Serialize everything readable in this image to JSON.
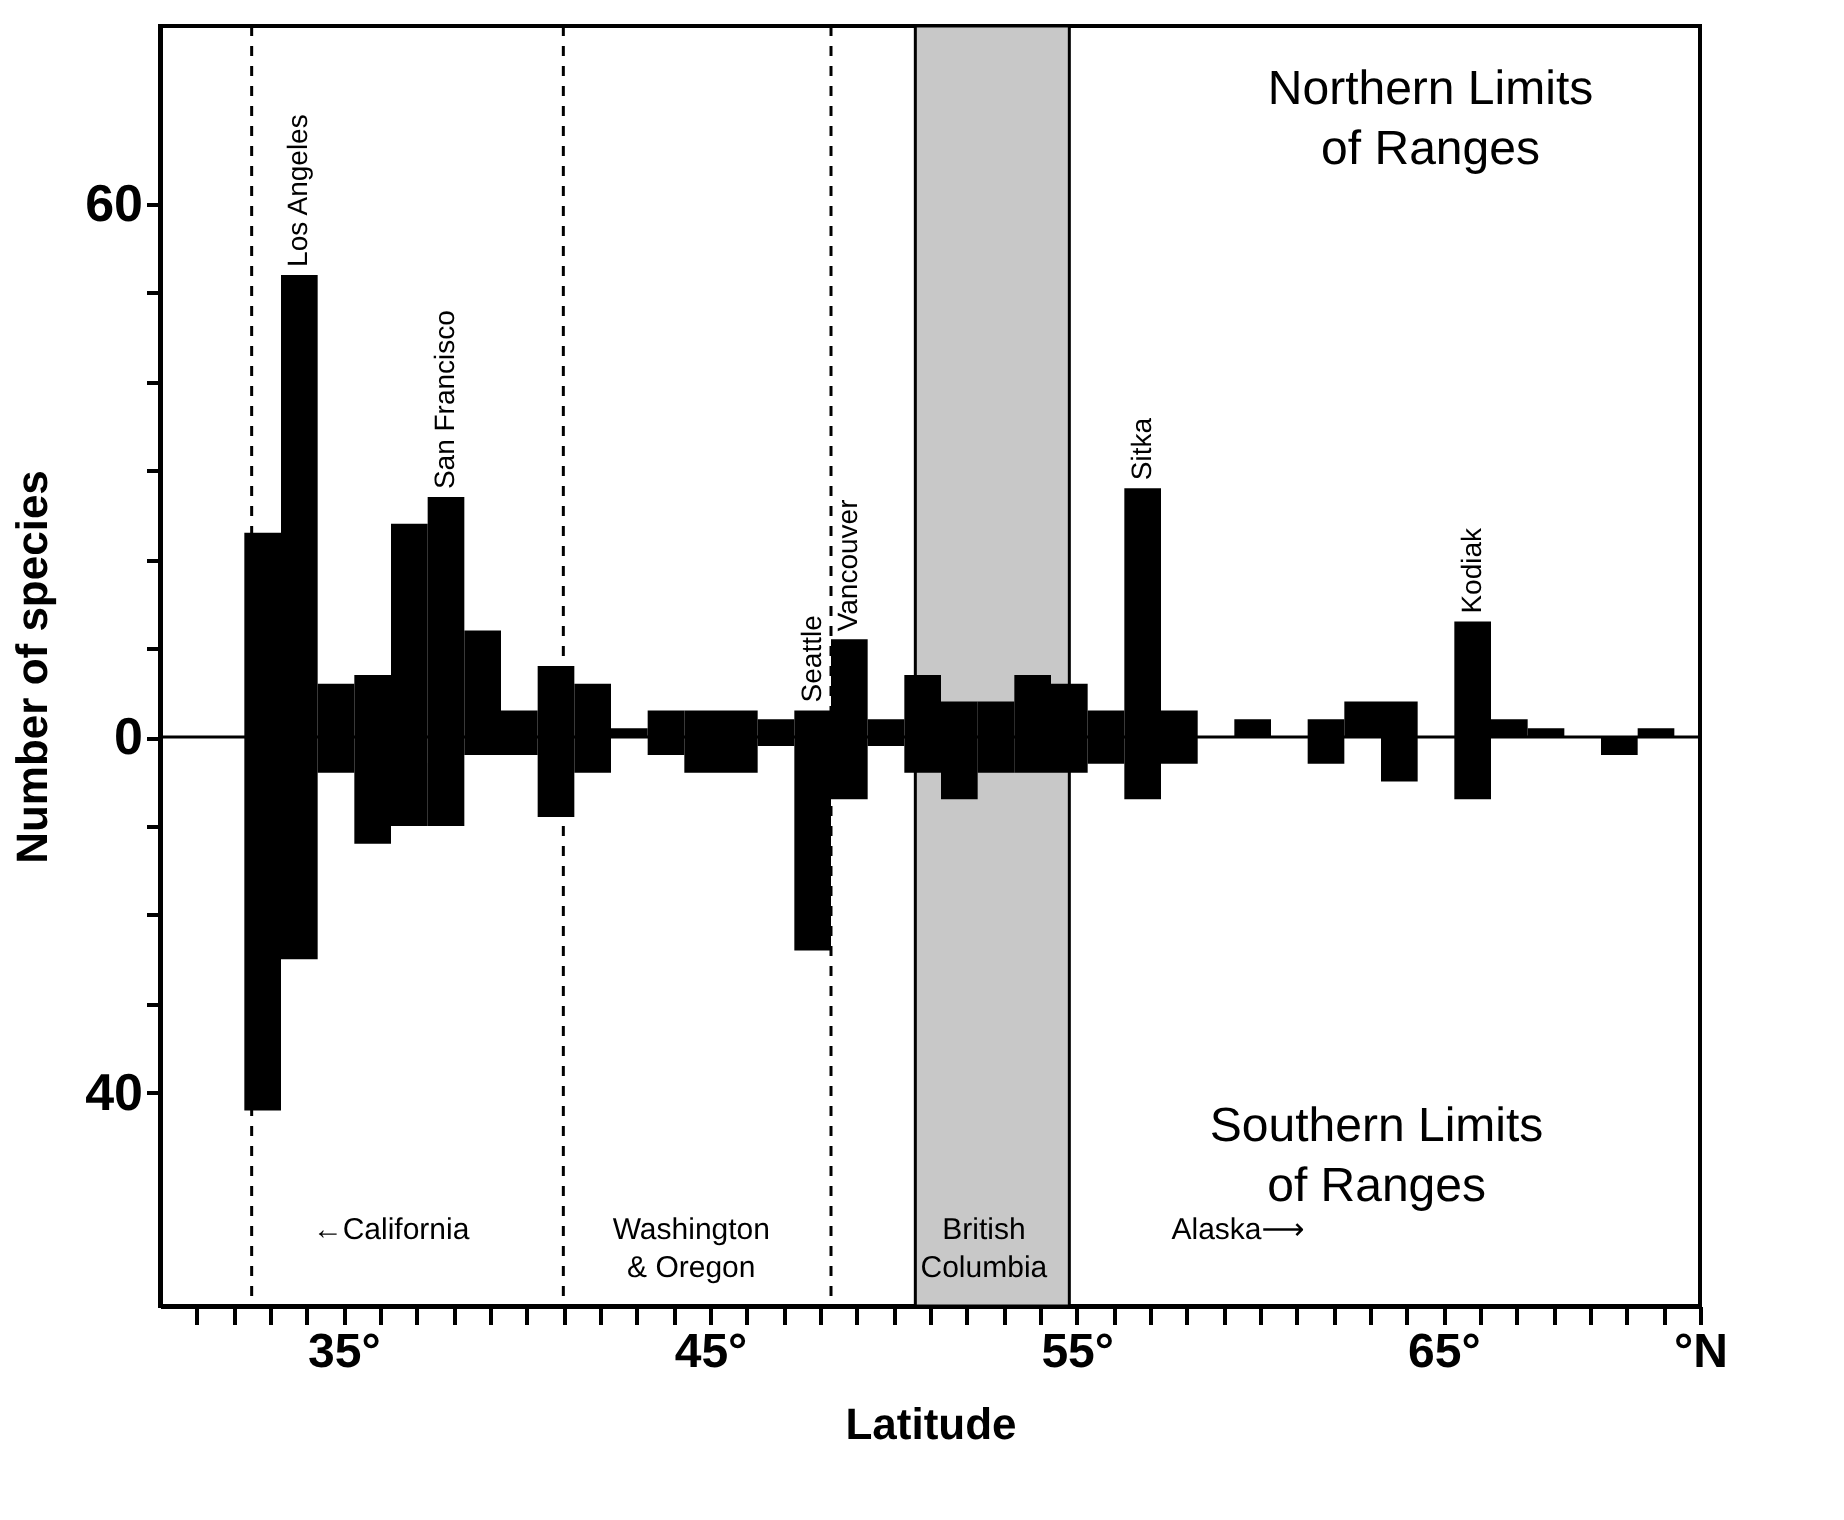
{
  "chart_data": {
    "type": "bar",
    "xlabel": "Latitude",
    "ylabel": "Number of species",
    "stacked": true,
    "x": [
      32.8,
      33.8,
      34.8,
      35.8,
      36.8,
      37.8,
      38.8,
      39.8,
      40.8,
      41.8,
      42.8,
      43.8,
      44.8,
      45.8,
      46.8,
      47.8,
      48.8,
      49.8,
      50.8,
      51.8,
      52.8,
      53.8,
      54.8,
      55.8,
      56.8,
      57.8,
      59.8,
      61.8,
      62.8,
      63.8,
      65.8,
      66.8,
      67.8,
      69.8,
      70.8
    ],
    "series": [
      {
        "color": "#000000",
        "values": [
          23,
          52,
          6,
          7,
          24,
          27,
          12,
          3,
          8,
          6,
          1,
          3,
          3,
          3,
          2,
          3,
          11,
          2,
          7,
          4,
          4,
          7,
          6,
          3,
          28,
          3,
          2,
          2,
          4,
          4,
          13,
          2,
          1,
          null,
          1
        ]
      },
      {
        "color": "#000000",
        "values": [
          -42,
          -25,
          -4,
          -12,
          -10,
          -10,
          -2,
          -2,
          -9,
          -4,
          null,
          -2,
          -4,
          -4,
          -1,
          -24,
          -7,
          -1,
          -4,
          -7,
          -4,
          -4,
          -4,
          -3,
          -7,
          -3,
          null,
          -3,
          null,
          -5,
          -7,
          null,
          null,
          -2,
          null
        ]
      }
    ],
    "xlim": [
      30,
      72
    ],
    "xticks": [
      {
        "value": 31,
        "label": null
      },
      {
        "value": 32,
        "label": null
      },
      {
        "value": 33,
        "label": null
      },
      {
        "value": 34,
        "label": null
      },
      {
        "value": 35,
        "label": "35°"
      },
      {
        "value": 36,
        "label": null
      },
      {
        "value": 37,
        "label": null
      },
      {
        "value": 38,
        "label": null
      },
      {
        "value": 39,
        "label": null
      },
      {
        "value": 40,
        "label": null
      },
      {
        "value": 41,
        "label": null
      },
      {
        "value": 42,
        "label": null
      },
      {
        "value": 43,
        "label": null
      },
      {
        "value": 44,
        "label": null
      },
      {
        "value": 45,
        "label": "45°"
      },
      {
        "value": 46,
        "label": null
      },
      {
        "value": 47,
        "label": null
      },
      {
        "value": 48,
        "label": null
      },
      {
        "value": 49,
        "label": null
      },
      {
        "value": 50,
        "label": null
      },
      {
        "value": 51,
        "label": null
      },
      {
        "value": 52,
        "label": null
      },
      {
        "value": 53,
        "label": null
      },
      {
        "value": 54,
        "label": null
      },
      {
        "value": 55,
        "label": "55°"
      },
      {
        "value": 56,
        "label": null
      },
      {
        "value": 57,
        "label": null
      },
      {
        "value": 58,
        "label": null
      },
      {
        "value": 59,
        "label": null
      },
      {
        "value": 60,
        "label": null
      },
      {
        "value": 61,
        "label": null
      },
      {
        "value": 62,
        "label": null
      },
      {
        "value": 63,
        "label": null
      },
      {
        "value": 64,
        "label": null
      },
      {
        "value": 65,
        "label": "65°"
      },
      {
        "value": 66,
        "label": null
      },
      {
        "value": 67,
        "label": null
      },
      {
        "value": 68,
        "label": null
      },
      {
        "value": 69,
        "label": null
      },
      {
        "value": 70,
        "label": null
      },
      {
        "value": 71,
        "label": null
      },
      {
        "value": 72,
        "label": "°N"
      }
    ],
    "ylim": [
      -64,
      80
    ],
    "yticks": [
      {
        "value": -40,
        "label": "40"
      },
      {
        "value": -30,
        "label": null
      },
      {
        "value": -20,
        "label": null
      },
      {
        "value": -10,
        "label": null
      },
      0,
      {
        "value": 10,
        "label": null
      },
      {
        "value": 20,
        "label": null
      },
      {
        "value": 30,
        "label": null
      },
      {
        "value": 40,
        "label": null
      },
      {
        "value": 50,
        "label": null
      },
      60
    ],
    "ref_lines": [
      {
        "axis": "x",
        "value": 32.5,
        "line_style": "dashed"
      },
      {
        "axis": "x",
        "value": 41,
        "line_style": "dashed"
      },
      {
        "axis": "x",
        "value": 48.3,
        "line_style": "dashed"
      },
      {
        "axis": "y",
        "value": 0,
        "line_style": "solid"
      }
    ],
    "bands": [
      {
        "axis": "x",
        "from": 50.6,
        "to": 54.8,
        "color": "#c8c8c8"
      }
    ],
    "annotations": [
      {
        "text": "Los Angeles",
        "x": 33.8,
        "y": 52
      },
      {
        "text": "San Francisco",
        "x": 37.8,
        "y": 27
      },
      {
        "text": "Seattle",
        "x": 47.8,
        "y": 3
      },
      {
        "text": "Vancouver",
        "x": 48.8,
        "y": 11
      },
      {
        "text": "Sitka",
        "x": 56.8,
        "y": 28
      },
      {
        "text": "Kodiak",
        "x": 65.8,
        "y": 13
      },
      "Northern Limits\nof Ranges",
      "Southern Limits\nof Ranges",
      "←California",
      "Washington\n& Oregon",
      "British\nColumbia",
      "Alaska⟶"
    ]
  }
}
